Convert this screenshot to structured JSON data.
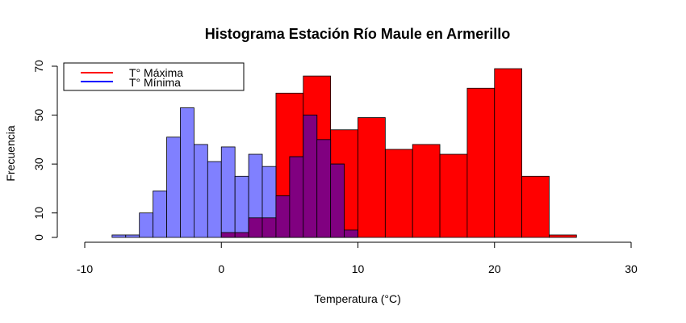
{
  "chart_data": {
    "type": "bar",
    "title": "Histograma Estación Río Maule en Armerillo",
    "xlabel": "Temperatura (°C)",
    "ylabel": "Frecuencia",
    "xlim": [
      -10,
      30
    ],
    "ylim": [
      0,
      70
    ],
    "x_ticks": [
      -10,
      0,
      10,
      20,
      30
    ],
    "y_ticks": [
      0,
      10,
      30,
      50,
      70
    ],
    "grid": false,
    "legend_position": "top-left",
    "series": [
      {
        "name": "T° Mínima",
        "color": "#8080ff",
        "line_color": "#0000ff",
        "bin_edges": [
          -8,
          -7,
          -6,
          -5,
          -4,
          -3,
          -2,
          -1,
          0,
          1,
          2,
          3,
          4,
          5,
          6,
          7,
          8,
          9,
          10
        ],
        "counts": [
          1,
          1,
          10,
          19,
          41,
          53,
          38,
          31,
          37,
          25,
          34,
          29,
          17,
          33,
          50,
          40,
          30,
          3
        ]
      },
      {
        "name": "T° Máxima",
        "color": "#ff0000",
        "line_color": "#ff0000",
        "bin_edges": [
          0,
          2,
          4,
          6,
          8,
          10,
          12,
          14,
          16,
          18,
          20,
          22,
          24,
          26
        ],
        "counts": [
          2,
          8,
          59,
          66,
          44,
          49,
          36,
          38,
          34,
          61,
          69,
          25,
          1
        ]
      }
    ],
    "overlap_color": "#800080"
  }
}
